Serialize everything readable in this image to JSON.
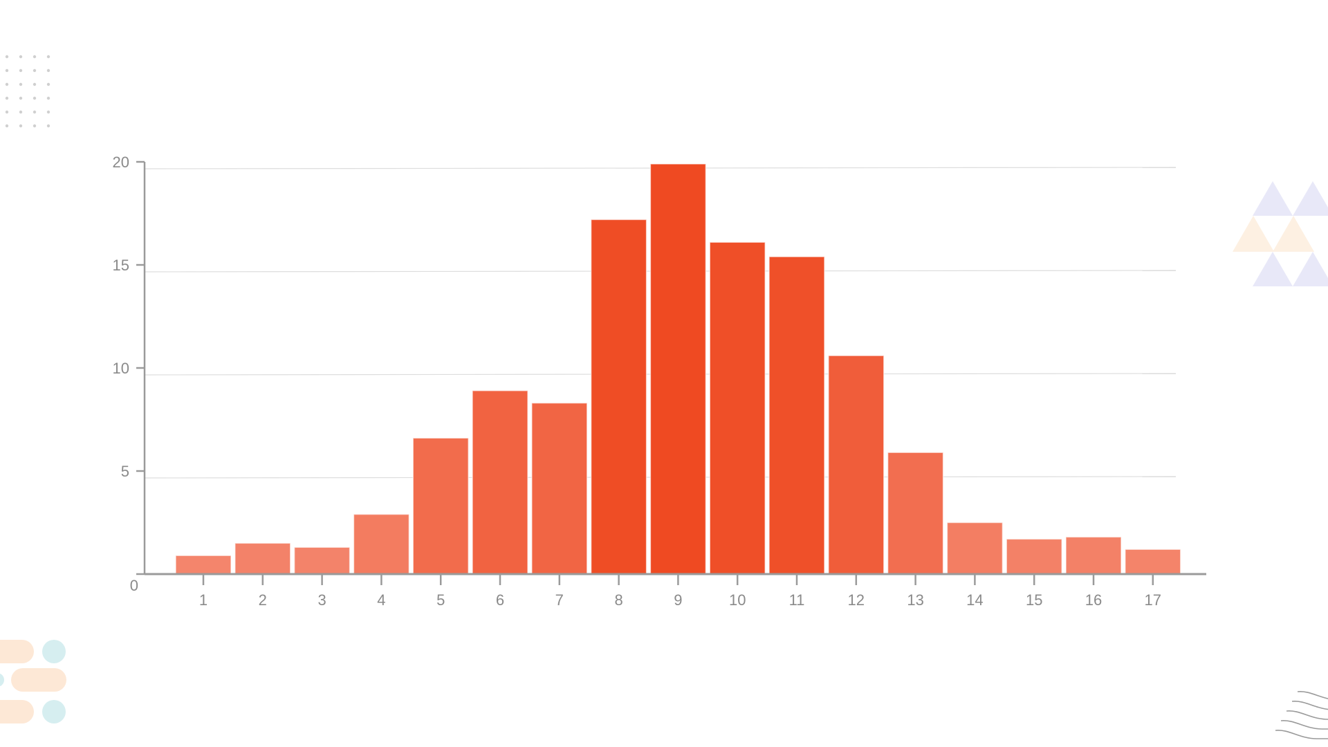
{
  "chart_data": {
    "type": "bar",
    "title": "",
    "xlabel": "",
    "ylabel": "",
    "categories": [
      "1",
      "2",
      "3",
      "4",
      "5",
      "6",
      "7",
      "8",
      "9",
      "10",
      "11",
      "12",
      "13",
      "14",
      "15",
      "16",
      "17"
    ],
    "values": [
      0.9,
      1.5,
      1.3,
      2.9,
      6.6,
      8.9,
      8.3,
      17.2,
      19.9,
      16.1,
      15.4,
      10.6,
      5.9,
      2.5,
      1.7,
      1.8,
      1.2
    ],
    "ylim": [
      0,
      20
    ],
    "yticks": [
      "0",
      "5",
      "10",
      "15",
      "20"
    ],
    "grid": true,
    "legend": "none",
    "colors": {
      "bar_dark": "#ef4a22",
      "bar_light": "#f48a72",
      "axis": "#9a9a9a",
      "grid": "#dddddd"
    }
  },
  "decorations": {
    "dots_color": "#d0d0d0",
    "triangle_colors": [
      "#e8e8f8",
      "#fdf0e2"
    ],
    "pill_colors": [
      "#fde8d6",
      "#d6eef0"
    ],
    "wave_color": "#9a9a9a"
  }
}
